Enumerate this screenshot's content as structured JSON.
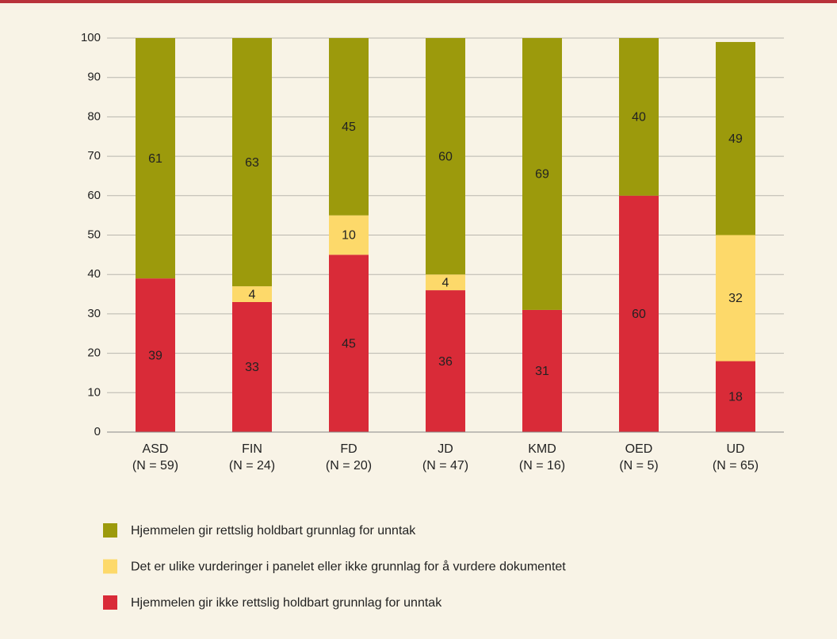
{
  "chart_data": {
    "type": "stacked_bar",
    "categories": [
      "ASD",
      "FIN",
      "FD",
      "JD",
      "KMD",
      "OED",
      "UD"
    ],
    "category_notes": [
      "(N = 59)",
      "(N = 24)",
      "(N = 20)",
      "(N = 47)",
      "(N = 16)",
      "(N = 5)",
      "(N = 65)"
    ],
    "series": [
      {
        "name": "Hjemmelen gir rettslig holdbart grunnlag for unntak",
        "color": "#9c9a0c",
        "values": [
          61,
          63,
          45,
          60,
          69,
          40,
          49
        ]
      },
      {
        "name": "Det er ulike vurderinger i panelet eller ikke grunnlag for å vurdere dokumentet",
        "color": "#fdd96a",
        "values": [
          null,
          4,
          10,
          4,
          null,
          null,
          32
        ]
      },
      {
        "name": "Hjemmelen gir ikke rettslig holdbart grunnlag for unntak",
        "color": "#d92b38",
        "values": [
          39,
          33,
          45,
          36,
          31,
          60,
          18
        ]
      }
    ],
    "ylim": [
      0,
      100
    ],
    "yticks": [
      0,
      10,
      20,
      30,
      40,
      50,
      60,
      70,
      80,
      90,
      100
    ],
    "grid": true
  }
}
